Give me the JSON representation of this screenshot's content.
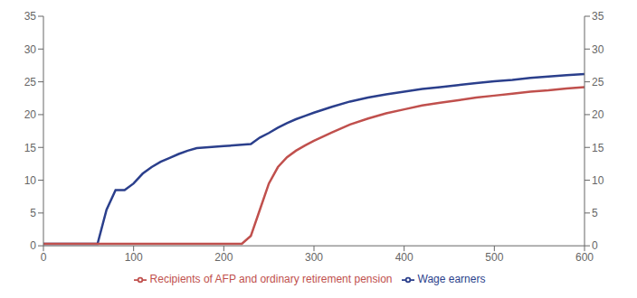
{
  "chart_data": {
    "type": "line",
    "series": [
      {
        "name": "Wage earners",
        "color": "#2b3f8c",
        "x": [
          0,
          60,
          70,
          80,
          90,
          100,
          110,
          120,
          130,
          140,
          150,
          160,
          170,
          180,
          190,
          200,
          210,
          220,
          230,
          240,
          250,
          260,
          270,
          280,
          290,
          300,
          320,
          340,
          360,
          380,
          400,
          420,
          440,
          460,
          480,
          500,
          520,
          540,
          560,
          580,
          600
        ],
        "values": [
          0.3,
          0.3,
          5.5,
          8.5,
          8.5,
          9.5,
          11.0,
          12.0,
          12.8,
          13.4,
          14.0,
          14.5,
          14.9,
          15.0,
          15.1,
          15.2,
          15.3,
          15.4,
          15.5,
          16.5,
          17.2,
          18.0,
          18.7,
          19.3,
          19.8,
          20.3,
          21.2,
          22.0,
          22.6,
          23.1,
          23.5,
          23.9,
          24.2,
          24.5,
          24.8,
          25.1,
          25.3,
          25.6,
          25.8,
          26.0,
          26.2
        ]
      },
      {
        "name": "Recipients of AFP and ordinary retirement pension",
        "color": "#c0504d",
        "x": [
          0,
          220,
          230,
          240,
          250,
          260,
          270,
          280,
          290,
          300,
          320,
          340,
          360,
          380,
          400,
          420,
          440,
          460,
          480,
          500,
          520,
          540,
          560,
          580,
          600
        ],
        "values": [
          0.3,
          0.3,
          1.5,
          5.5,
          9.5,
          12.0,
          13.5,
          14.5,
          15.3,
          16.0,
          17.3,
          18.5,
          19.4,
          20.2,
          20.8,
          21.4,
          21.8,
          22.2,
          22.6,
          22.9,
          23.2,
          23.5,
          23.7,
          24.0,
          24.2
        ]
      }
    ],
    "xlim": [
      0,
      600
    ],
    "xticks": [
      0,
      100,
      200,
      300,
      400,
      500,
      600
    ],
    "ylim": [
      0,
      35
    ],
    "yticks": [
      0,
      5,
      10,
      15,
      20,
      25,
      30,
      35
    ],
    "y2lim": [
      0,
      35
    ],
    "y2ticks": [
      0,
      5,
      10,
      15,
      20,
      25,
      30,
      35
    ],
    "grid": false,
    "legend": "bottom"
  }
}
